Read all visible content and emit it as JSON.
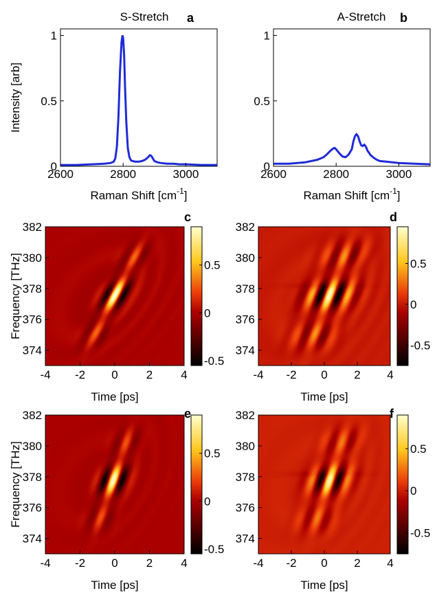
{
  "chart_data": [
    {
      "panel": "a",
      "type": "line",
      "title": "S-Stretch",
      "xlabel": "Raman Shift [cm",
      "xlabel_sup": "-1",
      "xlabel_end": "]",
      "ylabel": "Intensity [arb]",
      "xlim": [
        2600,
        3100
      ],
      "ylim": [
        0,
        1.05
      ],
      "xticks": [
        "2600",
        "2800",
        "3000"
      ],
      "yticks": [
        "0",
        "0.5",
        "1"
      ],
      "color": "#1f2bd6",
      "series": [
        {
          "x": [
            2600,
            2650,
            2700,
            2740,
            2760,
            2770,
            2775,
            2780,
            2785,
            2790,
            2795,
            2798,
            2800,
            2803,
            2806,
            2810,
            2815,
            2820,
            2825,
            2830,
            2840,
            2850,
            2860,
            2870,
            2880,
            2885,
            2890,
            2895,
            2900,
            2910,
            2920,
            2940,
            2960,
            2980,
            3000,
            3050,
            3100
          ],
          "y": [
            0.01,
            0.01,
            0.015,
            0.02,
            0.025,
            0.035,
            0.06,
            0.15,
            0.38,
            0.72,
            0.95,
            1.0,
            0.98,
            0.86,
            0.62,
            0.34,
            0.14,
            0.07,
            0.045,
            0.04,
            0.035,
            0.035,
            0.04,
            0.05,
            0.07,
            0.085,
            0.08,
            0.06,
            0.04,
            0.03,
            0.025,
            0.02,
            0.02,
            0.015,
            0.015,
            0.01,
            0.01
          ]
        }
      ]
    },
    {
      "panel": "b",
      "type": "line",
      "title": "A-Stretch",
      "xlabel": "Raman Shift [cm",
      "xlabel_sup": "-1",
      "xlabel_end": "]",
      "ylabel": "",
      "xlim": [
        2600,
        3100
      ],
      "ylim": [
        0,
        1.05
      ],
      "xticks": [
        "2600",
        "2800",
        "3000"
      ],
      "yticks": [
        "0",
        "0.5",
        "1"
      ],
      "color": "#1f2bd6",
      "series": [
        {
          "x": [
            2600,
            2650,
            2700,
            2740,
            2760,
            2770,
            2780,
            2790,
            2795,
            2800,
            2810,
            2820,
            2830,
            2840,
            2850,
            2855,
            2860,
            2865,
            2870,
            2875,
            2880,
            2885,
            2890,
            2895,
            2900,
            2910,
            2920,
            2930,
            2940,
            2960,
            2980,
            3000,
            3050,
            3100
          ],
          "y": [
            0.02,
            0.02,
            0.03,
            0.05,
            0.07,
            0.09,
            0.115,
            0.135,
            0.14,
            0.13,
            0.1,
            0.075,
            0.07,
            0.09,
            0.13,
            0.19,
            0.23,
            0.245,
            0.23,
            0.19,
            0.16,
            0.155,
            0.165,
            0.15,
            0.12,
            0.085,
            0.065,
            0.05,
            0.04,
            0.035,
            0.03,
            0.025,
            0.02,
            0.015
          ]
        }
      ]
    },
    {
      "panel": "c",
      "type": "heatmap",
      "title": "",
      "xlabel": "Time [ps]",
      "ylabel": "Frequency [THz]",
      "xlim": [
        -4,
        4
      ],
      "ylim": [
        373,
        382
      ],
      "xticks": [
        "-4",
        "-2",
        "0",
        "2",
        "4"
      ],
      "yticks": [
        "374",
        "376",
        "378",
        "380",
        "382"
      ],
      "colorbar": {
        "range": [
          -0.55,
          0.9
        ],
        "ticks": [
          "-0.5",
          "0",
          "0.5"
        ]
      },
      "features": {
        "center_t": 0.0,
        "center_f": 377.6,
        "spread_t": 0.45,
        "spread_f": 1.7,
        "skew": 0.45,
        "ring_amp": 0.35,
        "streak": false,
        "peak": 0.9,
        "trough": -0.5
      }
    },
    {
      "panel": "d",
      "type": "heatmap",
      "title": "",
      "xlabel": "Time [ps]",
      "ylabel": "",
      "xlim": [
        -4,
        4
      ],
      "ylim": [
        373,
        382
      ],
      "xticks": [
        "-4",
        "-2",
        "0",
        "2",
        "4"
      ],
      "yticks": [
        "374",
        "376",
        "378",
        "380",
        "382"
      ],
      "colorbar": {
        "range": [
          -0.75,
          0.95
        ],
        "ticks": [
          "-0.5",
          "0",
          "0.5"
        ]
      },
      "features": {
        "center_t": 0.3,
        "center_f": 377.6,
        "spread_t": 0.9,
        "spread_f": 1.9,
        "skew": 0.35,
        "ring_amp": 0.55,
        "streak": true,
        "peak": 0.9,
        "trough": -0.7
      }
    },
    {
      "panel": "e",
      "type": "heatmap",
      "title": "",
      "xlabel": "Time [ps]",
      "ylabel": "Frequency [THz]",
      "xlim": [
        -4,
        4
      ],
      "ylim": [
        373,
        382
      ],
      "xticks": [
        "-4",
        "-2",
        "0",
        "2",
        "4"
      ],
      "yticks": [
        "374",
        "376",
        "378",
        "380",
        "382"
      ],
      "colorbar": {
        "range": [
          -0.55,
          0.9
        ],
        "ticks": [
          "-0.5",
          "0",
          "0.5"
        ]
      },
      "features": {
        "center_t": -0.1,
        "center_f": 377.8,
        "spread_t": 0.5,
        "spread_f": 1.6,
        "skew": 0.3,
        "ring_amp": 0.2,
        "streak": false,
        "peak": 0.85,
        "trough": -0.5
      }
    },
    {
      "panel": "f",
      "type": "heatmap",
      "title": "",
      "xlabel": "Time [ps]",
      "ylabel": "",
      "xlim": [
        -4,
        4
      ],
      "ylim": [
        373,
        382
      ],
      "xticks": [
        "-4",
        "-2",
        "0",
        "2",
        "4"
      ],
      "yticks": [
        "374",
        "376",
        "378",
        "380",
        "382"
      ],
      "colorbar": {
        "range": [
          -0.75,
          0.9
        ],
        "ticks": [
          "-0.5",
          "0",
          "0.5"
        ]
      },
      "features": {
        "center_t": 0.3,
        "center_f": 377.8,
        "spread_t": 0.75,
        "spread_f": 1.7,
        "skew": 0.3,
        "ring_amp": 0.3,
        "streak": true,
        "peak": 0.8,
        "trough": -0.7
      }
    }
  ]
}
